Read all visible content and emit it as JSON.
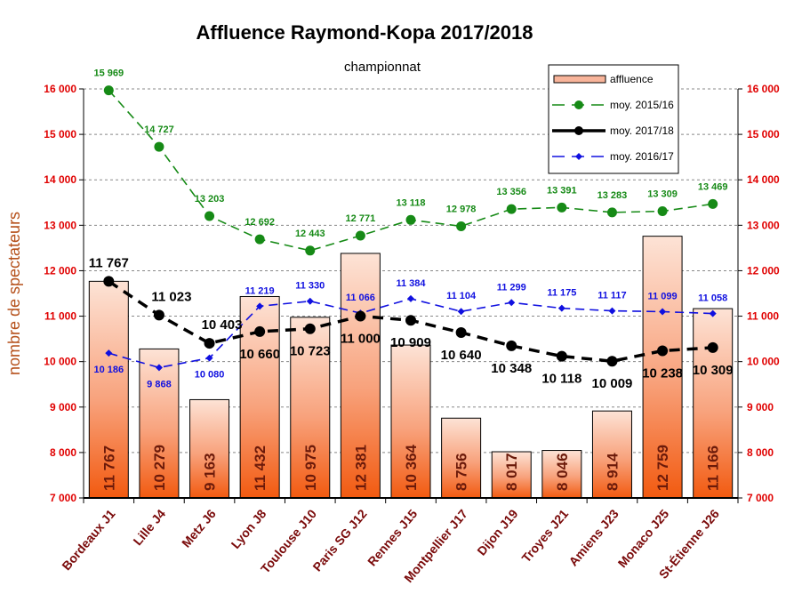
{
  "chart_data": {
    "type": "bar",
    "title": "Affluence Raymond-Kopa 2017/2018",
    "subtitle": "championnat",
    "ylabel": "nombre de spectateurs",
    "xlabel": "",
    "ylim": [
      7000,
      16000
    ],
    "yticks": [
      7000,
      8000,
      9000,
      10000,
      11000,
      12000,
      13000,
      14000,
      15000,
      16000
    ],
    "ytick_labels": [
      "7 000",
      "8 000",
      "9 000",
      "10 000",
      "11 000",
      "12 000",
      "13 000",
      "14 000",
      "15 000",
      "16 000"
    ],
    "grid": true,
    "legend_position": "top-right",
    "categories": [
      "Bordeaux J1",
      "Lille J4",
      "Metz J6",
      "Lyon J8",
      "Toulouse J10",
      "Paris SG J12",
      "Rennes J15",
      "Montpellier J17",
      "Dijon J19",
      "Troyes J21",
      "Amiens J23",
      "Monaco J25",
      "St-Étienne J26"
    ],
    "series": [
      {
        "name": "affluence",
        "kind": "bar",
        "color": "#f2622a",
        "values": [
          11767,
          10279,
          9163,
          11432,
          10975,
          12381,
          10364,
          8756,
          8017,
          8046,
          8914,
          12759,
          11166
        ],
        "labels": [
          "11 767",
          "10 279",
          "9 163",
          "11 432",
          "10 975",
          "12 381",
          "10 364",
          "8 756",
          "8 017",
          "8 046",
          "8 914",
          "12 759",
          "11 166"
        ]
      },
      {
        "name": "moy. 2015/16",
        "kind": "line",
        "color": "#168a16",
        "dash": "dashed",
        "marker": "circle",
        "values": [
          15969,
          14727,
          13203,
          12692,
          12443,
          12771,
          13118,
          12978,
          13356,
          13391,
          13283,
          13309,
          13469
        ],
        "labels": [
          "15 969",
          "14 727",
          "13 203",
          "12 692",
          "12 443",
          "12 771",
          "13 118",
          "12 978",
          "13 356",
          "13 391",
          "13 283",
          "13 309",
          "13 469"
        ]
      },
      {
        "name": "moy. 2017/18",
        "kind": "line",
        "color": "#000000",
        "dash": "dashed-thick",
        "marker": "circle",
        "values": [
          11767,
          11023,
          10403,
          10660,
          10723,
          11000,
          10909,
          10640,
          10348,
          10118,
          10009,
          10238,
          10309
        ],
        "labels": [
          "11 767",
          "11 023",
          "10 403",
          "10 660",
          "10 723",
          "11 000",
          "10 909",
          "10 640",
          "10 348",
          "10 118",
          "10 009",
          "10 238",
          "10 309"
        ]
      },
      {
        "name": "moy. 2016/17",
        "kind": "line",
        "color": "#1010e0",
        "dash": "dashed",
        "marker": "diamond",
        "values": [
          10186,
          9868,
          10080,
          11219,
          11330,
          11066,
          11384,
          11104,
          11299,
          11175,
          11117,
          11099,
          11058
        ],
        "labels": [
          "10 186",
          "9 868",
          "10 080",
          "11 219",
          "11 330",
          "11 066",
          "11 384",
          "11 104",
          "11 299",
          "11 175",
          "11 117",
          "11 099",
          "11 058"
        ]
      }
    ]
  }
}
